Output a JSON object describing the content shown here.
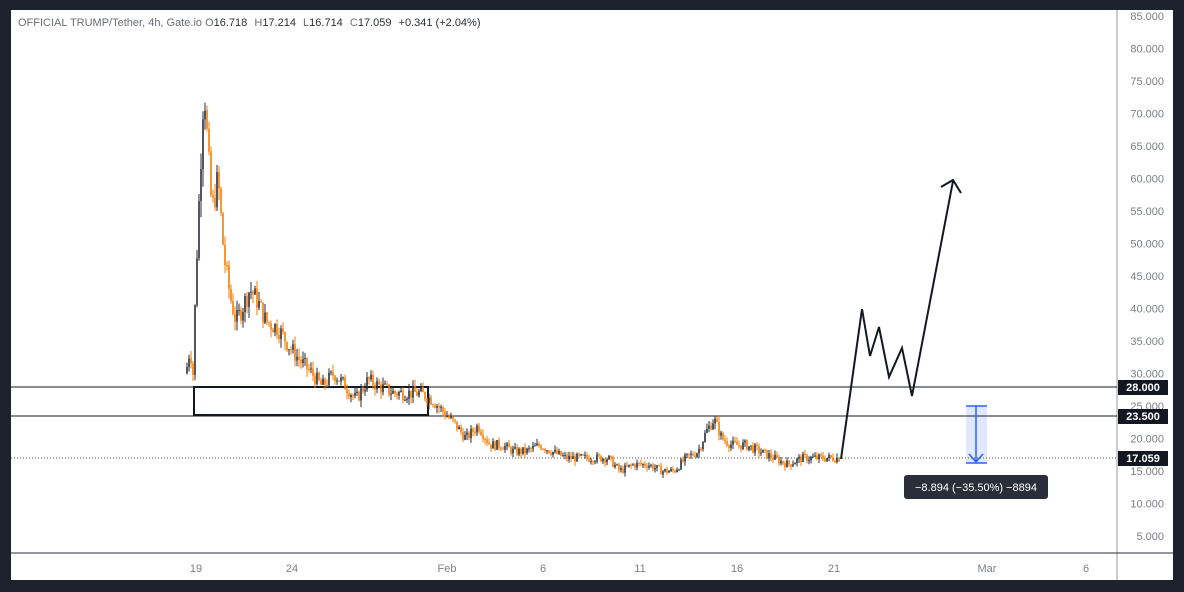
{
  "header": {
    "symbol": "OFFICIAL TRUMP/Tether, 4h, Gate.io",
    "o_label": "O",
    "o_value": "16.718",
    "h_label": "H",
    "h_value": "17.214",
    "l_label": "L",
    "l_value": "16.714",
    "c_label": "C",
    "c_value": "17.059",
    "change": "+0.341 (+2.04%)"
  },
  "price_labels": {
    "upper_level": "28.000",
    "lower_level": "23.500",
    "last_price": "17.059"
  },
  "measure": {
    "label": "−8.894 (−35.50%) −8894"
  },
  "colors": {
    "up": "#2a2e39",
    "down": "#f57c00",
    "measure": "#2962ff",
    "tag_bg": "#131722"
  },
  "chart_data": {
    "type": "candlestick",
    "title": "OFFICIAL TRUMP/Tether, 4h, Gate.io",
    "y_ticks": [
      "85.000",
      "80.000",
      "75.000",
      "70.000",
      "65.000",
      "60.000",
      "55.000",
      "50.000",
      "45.000",
      "40.000",
      "35.000",
      "30.000",
      "25.000",
      "20.000",
      "15.000",
      "10.000",
      "5.000"
    ],
    "x_ticks": [
      "19",
      "24",
      "Feb",
      "6",
      "11",
      "16",
      "21",
      "Mar",
      "6"
    ],
    "ylim": [
      0,
      85
    ],
    "horizontal_levels": [
      28.0,
      23.5
    ],
    "last_price": 17.059,
    "consolidation_box": {
      "from": "19",
      "to": "Feb",
      "top": 28.0,
      "bottom": 23.5
    },
    "approx_closes": [
      {
        "x": "19",
        "close": 30
      },
      {
        "x": "19",
        "close": 75
      },
      {
        "x": "19",
        "close": 58
      },
      {
        "x": "24",
        "close": 38
      },
      {
        "x": "24",
        "close": 30
      },
      {
        "x": "Feb",
        "close": 27
      },
      {
        "x": "Feb",
        "close": 21
      },
      {
        "x": "6",
        "close": 18
      },
      {
        "x": "11",
        "close": 15
      },
      {
        "x": "16",
        "close": 23
      },
      {
        "x": "16",
        "close": 18
      },
      {
        "x": "21",
        "close": 17.059
      }
    ],
    "projection_path": [
      17,
      40,
      33,
      37,
      30,
      34,
      27,
      60
    ],
    "measure_change": {
      "value": -8.894,
      "percent": -35.5
    }
  }
}
